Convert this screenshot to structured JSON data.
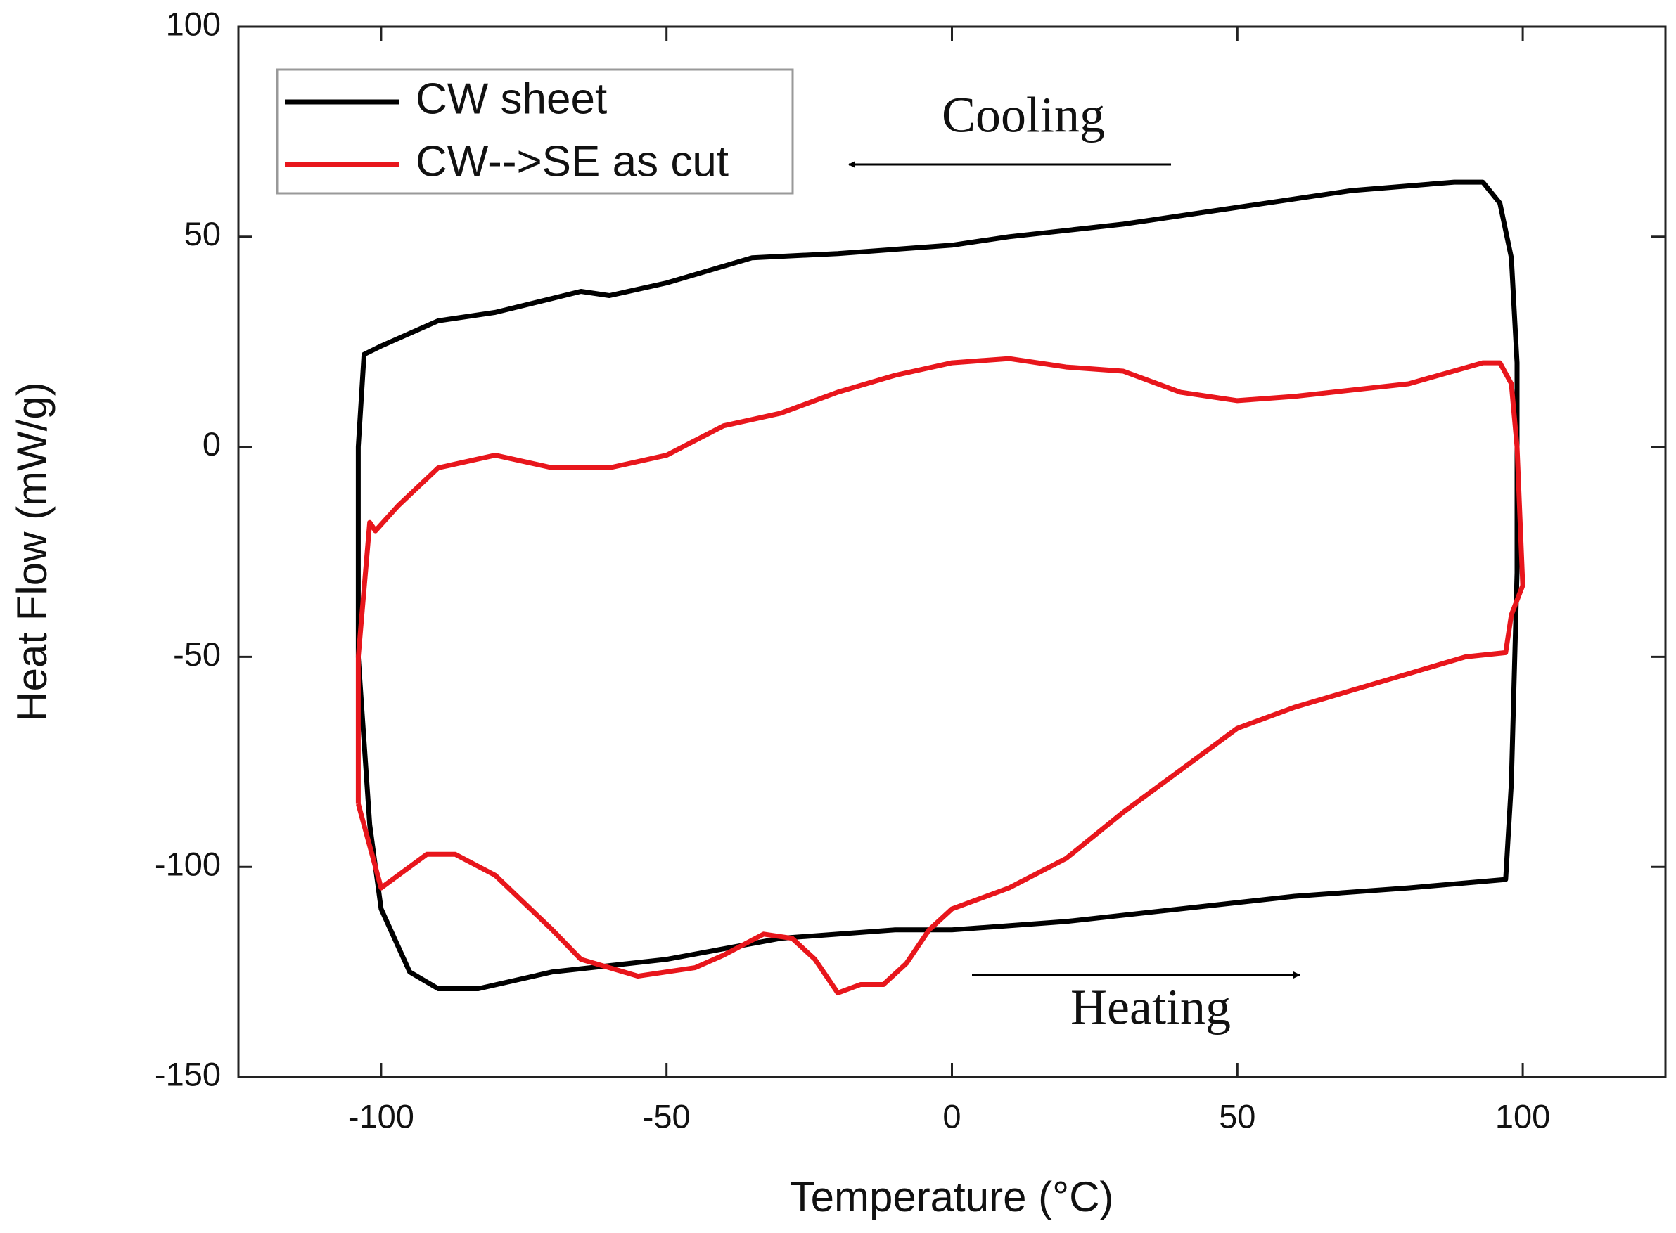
{
  "chart_data": {
    "type": "line",
    "xlabel": "Temperature (°C)",
    "ylabel": "Heat Flow (mW/g)",
    "xlim": [
      -125,
      125
    ],
    "ylim": [
      -150,
      100
    ],
    "xticks": [
      -100,
      -50,
      0,
      50,
      100
    ],
    "yticks": [
      -150,
      -100,
      -50,
      0,
      50,
      100
    ],
    "legend": "upper left",
    "annotations": [
      "Cooling",
      "Heating"
    ],
    "series": [
      {
        "name": "CW sheet",
        "color": "#000000",
        "x": [
          -104,
          -102,
          -100,
          -95,
          -90,
          -83,
          -70,
          -50,
          -30,
          -10,
          0,
          20,
          40,
          60,
          80,
          97,
          98,
          99,
          99,
          98,
          96,
          93,
          88,
          70,
          50,
          30,
          10,
          0,
          -20,
          -35,
          -50,
          -60,
          -65,
          -80,
          -90,
          -100,
          -103,
          -104,
          -104
        ],
        "values": [
          -50,
          -90,
          -110,
          -125,
          -129,
          -129,
          -125,
          -122,
          -117,
          -115,
          -115,
          -113,
          -110,
          -107,
          -105,
          -103,
          -80,
          -30,
          20,
          45,
          58,
          63,
          63,
          61,
          57,
          53,
          50,
          48,
          46,
          45,
          39,
          36,
          37,
          32,
          30,
          24,
          22,
          0,
          -50
        ]
      },
      {
        "name": "CW-->SE as cut",
        "color": "#e8161c",
        "x": [
          -104,
          -100,
          -97,
          -92,
          -87,
          -80,
          -70,
          -65,
          -60,
          -55,
          -45,
          -40,
          -33,
          -28,
          -24,
          -20,
          -16,
          -12,
          -8,
          -4,
          0,
          10,
          20,
          30,
          40,
          50,
          60,
          70,
          80,
          90,
          97,
          98,
          100,
          99,
          98,
          96,
          93,
          80,
          60,
          50,
          40,
          30,
          20,
          10,
          0,
          -10,
          -20,
          -30,
          -40,
          -50,
          -60,
          -70,
          -80,
          -90,
          -97,
          -101,
          -102,
          -104,
          -104
        ],
        "values": [
          -85,
          -105,
          -102,
          -97,
          -97,
          -102,
          -115,
          -122,
          -124,
          -126,
          -124,
          -121,
          -116,
          -117,
          -122,
          -130,
          -128,
          -128,
          -123,
          -115,
          -110,
          -105,
          -98,
          -87,
          -77,
          -67,
          -62,
          -58,
          -54,
          -50,
          -49,
          -40,
          -33,
          0,
          15,
          20,
          20,
          15,
          12,
          11,
          13,
          18,
          19,
          21,
          20,
          17,
          13,
          8,
          5,
          -2,
          -5,
          -5,
          -2,
          -5,
          -14,
          -20,
          -18,
          -50,
          -85
        ]
      }
    ]
  }
}
